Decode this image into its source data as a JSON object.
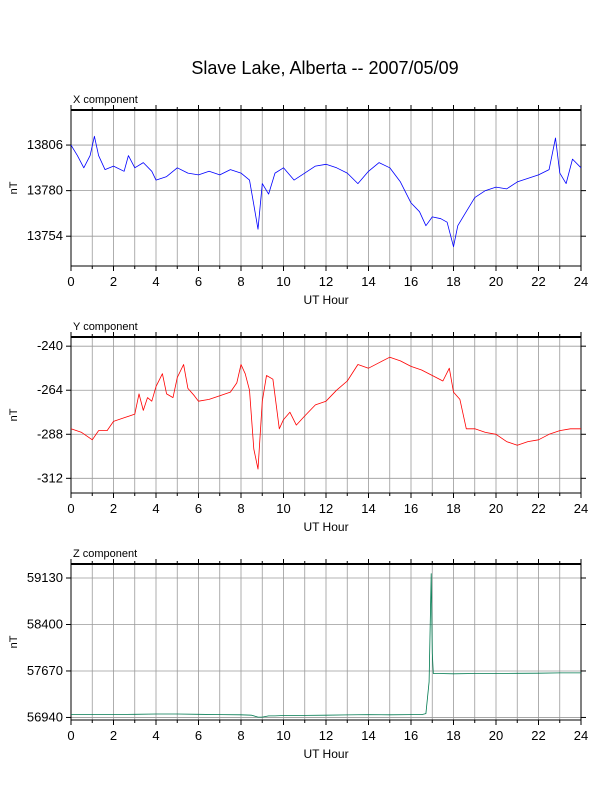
{
  "page": {
    "title": "Slave Lake, Alberta -- 2007/05/09"
  },
  "chart_data": [
    {
      "type": "line",
      "title": "X component",
      "xlabel": "UT Hour",
      "ylabel": "nT",
      "xlim": [
        0,
        24
      ],
      "ylim": [
        13737,
        13826
      ],
      "xticks": [
        "0",
        "2",
        "4",
        "6",
        "8",
        "10",
        "12",
        "14",
        "16",
        "18",
        "20",
        "22",
        "24"
      ],
      "yticks": [
        "13806",
        "13780",
        "13754"
      ],
      "ytick_values": [
        13806,
        13780,
        13754
      ],
      "grid": true,
      "color": "#0000ff",
      "series": [
        {
          "x": [
            0,
            0.3,
            0.6,
            0.9,
            1.1,
            1.3,
            1.6,
            2,
            2.5,
            2.7,
            3,
            3.4,
            3.8,
            4,
            4.5,
            5,
            5.5,
            6,
            6.5,
            7,
            7.5,
            8,
            8.4,
            8.6,
            8.8,
            9,
            9.3,
            9.6,
            10,
            10.5,
            11,
            11.5,
            12,
            12.5,
            13,
            13.5,
            14,
            14.5,
            15,
            15.5,
            16,
            16.4,
            16.7,
            17,
            17.4,
            17.7,
            18,
            18.2,
            18.5,
            19,
            19.5,
            20,
            20.5,
            21,
            21.5,
            22,
            22.5,
            22.8,
            23,
            23.3,
            23.6,
            24
          ],
          "values": [
            13806,
            13800,
            13793,
            13800,
            13811,
            13800,
            13792,
            13794,
            13791,
            13800,
            13793,
            13796,
            13791,
            13786,
            13788,
            13793,
            13790,
            13789,
            13791,
            13789,
            13792,
            13790,
            13786,
            13772,
            13758,
            13784,
            13778,
            13790,
            13793,
            13786,
            13790,
            13794,
            13795,
            13793,
            13790,
            13784,
            13791,
            13796,
            13793,
            13785,
            13773,
            13768,
            13760,
            13765,
            13764,
            13762,
            13748,
            13760,
            13766,
            13776,
            13780,
            13782,
            13781,
            13785,
            13787,
            13789,
            13792,
            13810,
            13790,
            13784,
            13798,
            13793
          ]
        }
      ]
    },
    {
      "type": "line",
      "title": "Y component",
      "xlabel": "UT Hour",
      "ylabel": "nT",
      "xlim": [
        0,
        24
      ],
      "ylim": [
        -320,
        -235
      ],
      "xticks": [
        "0",
        "2",
        "4",
        "6",
        "8",
        "10",
        "12",
        "14",
        "16",
        "18",
        "20",
        "22",
        "24"
      ],
      "yticks": [
        "-240",
        "-264",
        "-288",
        "-312"
      ],
      "ytick_values": [
        -240,
        -264,
        -288,
        -312
      ],
      "grid": true,
      "color": "#ff0000",
      "series": [
        {
          "x": [
            0,
            0.5,
            1,
            1.3,
            1.7,
            2,
            2.5,
            3,
            3.2,
            3.4,
            3.6,
            3.8,
            4,
            4.3,
            4.5,
            4.8,
            5,
            5.3,
            5.5,
            5.8,
            6,
            6.5,
            7,
            7.5,
            7.8,
            8,
            8.2,
            8.4,
            8.6,
            8.8,
            9,
            9.2,
            9.5,
            9.8,
            10,
            10.3,
            10.6,
            11,
            11.5,
            12,
            12.5,
            13,
            13.5,
            14,
            14.5,
            15,
            15.5,
            16,
            16.5,
            17,
            17.5,
            17.8,
            18,
            18.3,
            18.6,
            19,
            19.5,
            20,
            20.5,
            21,
            21.5,
            22,
            22.5,
            23,
            23.5,
            24
          ],
          "values": [
            -285,
            -287,
            -291,
            -286,
            -286,
            -281,
            -279,
            -277,
            -266,
            -275,
            -268,
            -270,
            -262,
            -255,
            -266,
            -268,
            -257,
            -250,
            -263,
            -267,
            -270,
            -269,
            -267,
            -265,
            -260,
            -250,
            -255,
            -264,
            -296,
            -307,
            -270,
            -256,
            -258,
            -285,
            -280,
            -276,
            -283,
            -278,
            -272,
            -270,
            -264,
            -259,
            -250,
            -252,
            -249,
            -246,
            -248,
            -251,
            -253,
            -256,
            -259,
            -252,
            -265,
            -269,
            -285,
            -285,
            -287,
            -288,
            -292,
            -294,
            -292,
            -291,
            -288,
            -286,
            -285,
            -285
          ]
        }
      ]
    },
    {
      "type": "line",
      "title": "Z component",
      "xlabel": "UT Hour",
      "ylabel": "nT",
      "xlim": [
        0,
        24
      ],
      "ylim": [
        56900,
        59350
      ],
      "xticks": [
        "0",
        "2",
        "4",
        "6",
        "8",
        "10",
        "12",
        "14",
        "16",
        "18",
        "20",
        "22",
        "24"
      ],
      "yticks": [
        "59130",
        "58400",
        "57670",
        "56940"
      ],
      "ytick_values": [
        59130,
        58400,
        57670,
        56940
      ],
      "grid": true,
      "color": "#007a50",
      "series": [
        {
          "x": [
            0,
            1,
            2,
            3,
            4,
            5,
            6,
            7,
            8,
            8.5,
            8.8,
            9,
            9.3,
            9.6,
            10,
            11,
            12,
            13,
            14,
            15,
            16,
            16.5,
            16.7,
            16.85,
            16.95,
            17,
            17.05,
            17.1,
            17.3,
            18,
            19,
            20,
            21,
            22,
            23,
            24
          ],
          "values": [
            56985,
            56985,
            56985,
            56990,
            56995,
            56995,
            56990,
            56985,
            56982,
            56975,
            56945,
            56945,
            56965,
            56965,
            56970,
            56972,
            56975,
            56980,
            56985,
            56982,
            56985,
            56985,
            57000,
            57500,
            59200,
            57950,
            57630,
            57630,
            57630,
            57625,
            57630,
            57630,
            57633,
            57635,
            57640,
            57640
          ]
        }
      ]
    }
  ]
}
